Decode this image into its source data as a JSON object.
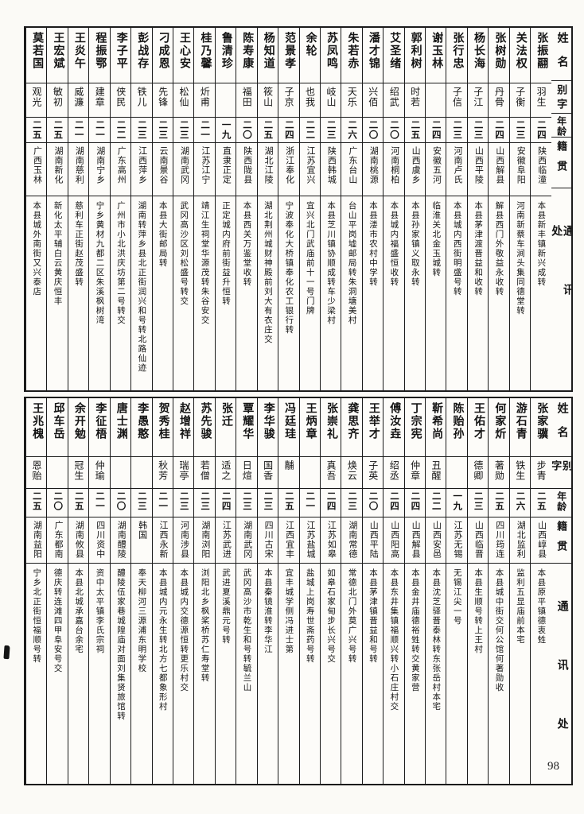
{
  "page_number": "98",
  "headers": {
    "name": "姓名",
    "courtesy": "别字",
    "age": "年龄",
    "origin": "籍贯",
    "address": "通讯处"
  },
  "blocks": [
    {
      "people": [
        {
          "name": "张振翮",
          "courtesy": "羽生",
          "age": "二四",
          "origin": "陕西临潼",
          "address": "本县新丰镇新兴成转"
        },
        {
          "name": "关法权",
          "courtesy": "子衡",
          "age": "二三",
          "origin": "安徽阜阳",
          "address": "河南新蔡车涧头集同德堂转"
        },
        {
          "name": "张树勋",
          "courtesy": "丹骨",
          "age": "二四",
          "origin": "山西解县",
          "address": "解县西门外敬益永收转"
        },
        {
          "name": "杨长海",
          "courtesy": "子江",
          "age": "二三",
          "origin": "山西平陵",
          "address": "本县茅津渡晋益和收转"
        },
        {
          "name": "张行忠",
          "courtesy": "子信",
          "age": "二三",
          "origin": "河南卢氏",
          "address": "本县城内西街明盛号转"
        },
        {
          "name": "谢玉林",
          "courtesy": "",
          "age": "二四",
          "origin": "安徽五河",
          "address": "临淮关北金玉城转"
        },
        {
          "name": "郭利树",
          "courtesy": "时若",
          "age": "二五",
          "origin": "山西虞乡",
          "address": "本县孙家镇义取永转"
        },
        {
          "name": "艾圣绪",
          "courtesy": "绍武",
          "age": "二〇",
          "origin": "河南桐柏",
          "address": "本县城内福盛恒收转"
        },
        {
          "name": "潘才锦",
          "courtesy": "兴佰",
          "age": "二〇",
          "origin": "湖南桃源",
          "address": "本县溇市农村中学转"
        },
        {
          "name": "朱若赤",
          "courtesy": "天乐",
          "age": "二六",
          "origin": "广东台山",
          "address": "台山平岗墟邮局转朱洞塘美村"
        },
        {
          "name": "苏凤鸣",
          "courtesy": "岐山",
          "age": "二三",
          "origin": "陕西韩城",
          "address": "本县芝川镇协顺成转车少梁村"
        },
        {
          "name": "余轮",
          "courtesy": "也我",
          "age": "二二",
          "origin": "江苏宜兴",
          "address": "宜兴北门武庙前十一号门牌"
        },
        {
          "name": "范景孝",
          "courtesy": "子京",
          "age": "二四",
          "origin": "浙江奉化",
          "address": "宁波奉化大桥镇奉化农工银行转"
        },
        {
          "name": "杨知道",
          "courtesy": "筱山",
          "age": "二五",
          "origin": "湖北江陵",
          "address": "湖北荆州城财神殿前刘大有衣庄交"
        },
        {
          "name": "陈寿康",
          "courtesy": "福田",
          "age": "二〇",
          "origin": "陕西陇县",
          "address": "本县西关万鉴堂收转"
        },
        {
          "name": "鲁清珍",
          "courtesy": "",
          "age": "一九",
          "origin": "直隶正定",
          "address": "正定城内府前街益升恒转"
        },
        {
          "name": "桂乃馨",
          "courtesy": "炘甫",
          "age": "二一",
          "origin": "江苏江宁",
          "address": "靖江生祠堂华源茂转朱谷安交"
        },
        {
          "name": "王心安",
          "courtesy": "松仙",
          "age": "二三",
          "origin": "湖南武冈",
          "address": "武冈高沙区刘松盛号转交"
        },
        {
          "name": "刁成恩",
          "courtesy": "先锋",
          "age": "二三",
          "origin": "云南景谷",
          "address": "本县大街邮局转"
        },
        {
          "name": "彭战存",
          "courtesy": "铁儿",
          "age": "二三",
          "origin": "江西萍乡",
          "address": "湖南转萍乡县北正街润兴和号转北路仙迹"
        },
        {
          "name": "李子平",
          "courtesy": "侠民",
          "age": "二二",
          "origin": "广东高州",
          "address": "广州市小北洪庆坊第二号转交"
        },
        {
          "name": "程振鄂",
          "courtesy": "建章",
          "age": "二一",
          "origin": "湖南宁乡",
          "address": "宁乡黄材九都二区朱溪枫树湾"
        },
        {
          "name": "王炎午",
          "courtesy": "威濂",
          "age": "二一",
          "origin": "湖南慈利",
          "address": "慈利车正街赵茂盛转"
        },
        {
          "name": "王宏斌",
          "courtesy": "敏初",
          "age": "二五",
          "origin": "湖南新化",
          "address": "新化太平辅白云黄庆恒丰"
        },
        {
          "name": "莫若国",
          "courtesy": "观光",
          "age": "二五",
          "origin": "广西玉林",
          "address": "本县城外南街又兴泰店"
        }
      ]
    },
    {
      "people": [
        {
          "name": "张家骥",
          "courtesy": "步青",
          "age": "二五",
          "origin": "山西崞县",
          "address": "本县原平镇德衷甡"
        },
        {
          "name": "游石青",
          "courtesy": "铁生",
          "age": "二六",
          "origin": "湖北监利",
          "address": "监利五显庙前本宅"
        },
        {
          "name": "何家炘",
          "courtesy": "著勋",
          "age": "二五",
          "origin": "四川筠连",
          "address": "本县城中街交何公馆何著勋收"
        },
        {
          "name": "王佑才",
          "courtesy": "德卿",
          "age": "二三",
          "origin": "山西临晋",
          "address": "本县生顺号转上王村"
        },
        {
          "name": "陈贻孙",
          "courtesy": "",
          "age": "一九",
          "origin": "江苏无锡",
          "address": "无锡江尖一号"
        },
        {
          "name": "靳希尚",
          "courtesy": "丑醒",
          "age": "二二",
          "origin": "山西安邑",
          "address": "本县沈芝驿晋泰林转东张岳村本宅"
        },
        {
          "name": "丁宗宪",
          "courtesy": "仲章",
          "age": "二四",
          "origin": "山西解县",
          "address": "本县金井庙德裕甡转交黄家营"
        },
        {
          "name": "傅汝垚",
          "courtesy": "绍丞",
          "age": "二四",
          "origin": "山西阳高",
          "address": "本县东井集镇福顺兴转小石庄村交"
        },
        {
          "name": "王举才",
          "courtesy": "子英",
          "age": "二〇",
          "origin": "山西平陆",
          "address": "本县茅津镇晋益和号转"
        },
        {
          "name": "龚思齐",
          "courtesy": "焕云",
          "age": "二三",
          "origin": "湖南常德",
          "address": "常德北门外莫广兴号转"
        },
        {
          "name": "张崇礼",
          "courtesy": "真吾",
          "age": "二四",
          "origin": "江苏如皋",
          "address": "如皋石家甸步长兴号交"
        },
        {
          "name": "王炳章",
          "courtesy": "",
          "age": "二一",
          "origin": "江苏盐城",
          "address": "盐城上岗寿世斋药号转"
        },
        {
          "name": "冯廷珪",
          "courtesy": "黼",
          "age": "二五",
          "origin": "江西宜丰",
          "address": "宜丰城学侧冯进士第"
        },
        {
          "name": "李华骏",
          "courtesy": "国香",
          "age": "二三",
          "origin": "四川古宋",
          "address": "本县秦镜淮转李华江"
        },
        {
          "name": "覃耀华",
          "courtesy": "日煊",
          "age": "二三",
          "origin": "湖南武冈",
          "address": "武冈高沙市乾生和号转毓兰山"
        },
        {
          "name": "张迁",
          "courtesy": "适之",
          "age": "二四",
          "origin": "江苏武进",
          "address": "武进夏溪鼎元号转"
        },
        {
          "name": "苏先骏",
          "courtesy": "若僧",
          "age": "二三",
          "origin": "湖南浏阳",
          "address": "浏阳北乡枫桨桥苏仁寿堂转"
        },
        {
          "name": "赵增祥",
          "courtesy": "瑞亭",
          "age": "二三",
          "origin": "河南涉县",
          "address": "本县城内交德源恒转更乐村交"
        },
        {
          "name": "贺秀桂",
          "courtesy": "秋芳",
          "age": "二一",
          "origin": "江西永新",
          "address": "本县城内元永生转北方七都象形村"
        },
        {
          "name": "李愚憨",
          "courtesy": "",
          "age": "二三",
          "origin": "韩国",
          "address": "奉天柳河三源浦东明学校"
        },
        {
          "name": "唐士渊",
          "courtesy": "",
          "age": "二〇",
          "origin": "湖南醴陵",
          "address": "醴陵伍家巷城隍庙对面刘集贤旅馆转"
        },
        {
          "name": "李征梧",
          "courtesy": "仲瑜",
          "age": "二一",
          "origin": "四川资中",
          "address": "资中太平镇李氏宗祠"
        },
        {
          "name": "余开勉",
          "courtesy": "冠生",
          "age": "二五",
          "origin": "湖南攸县",
          "address": "本县北城承嘉台余宅"
        },
        {
          "name": "邱车岳",
          "courtesy": "",
          "age": "二〇",
          "origin": "广东都南",
          "address": "德庆转连滩四甲阜安号交"
        },
        {
          "name": "王兆槐",
          "courtesy": "恩贻",
          "age": "二五",
          "origin": "湖南益阳",
          "address": "宁乡北正街恒福顺号转"
        }
      ]
    }
  ]
}
